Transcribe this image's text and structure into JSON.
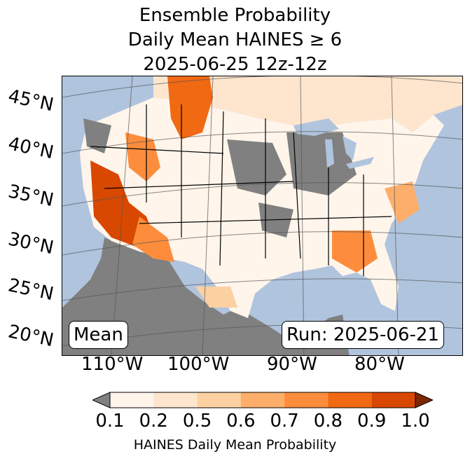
{
  "title": {
    "line1": "Ensemble Probability",
    "line2": "Daily Mean HAINES ≥ 6",
    "line3": "2025-06-25 12z-12z"
  },
  "map": {
    "lat_labels": [
      "45°N",
      "40°N",
      "35°N",
      "30°N",
      "25°N",
      "20°N"
    ],
    "lon_labels": [
      "110°W",
      "100°W",
      "90°W",
      "80°W"
    ],
    "left_box": "Mean",
    "right_box": "Run: 2025-06-21",
    "colors": {
      "ocean": "#b0c4de",
      "land_low": "#fff5eb",
      "masked": "#808080",
      "outside": "#808080"
    }
  },
  "colorbar": {
    "ticks": [
      "0.1",
      "0.2",
      "0.5",
      "0.6",
      "0.7",
      "0.8",
      "0.9",
      "1.0"
    ],
    "colors": [
      "#fff5eb",
      "#fee6ce",
      "#fdd0a2",
      "#fdae6b",
      "#fd8d3c",
      "#f16913",
      "#d94801"
    ],
    "under_color": "#808080",
    "over_color": "#7f2704",
    "label": "HAINES Daily Mean Probability"
  }
}
